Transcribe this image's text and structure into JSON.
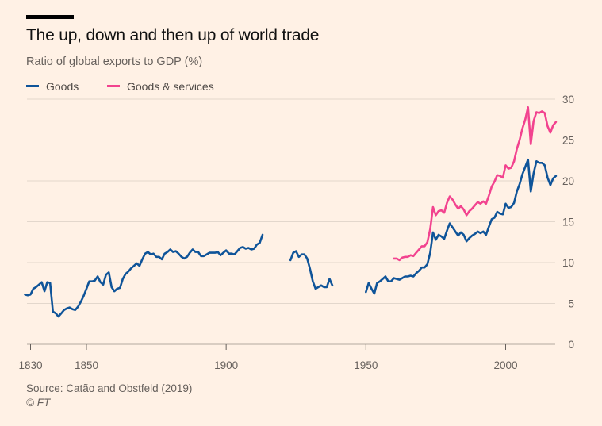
{
  "title": "The up, down and then up of world trade",
  "subtitle": "Ratio of global exports to GDP (%)",
  "source": "Source: Catão and Obstfeld (2019)",
  "credit": "© FT",
  "colors": {
    "goods": "#0F5499",
    "goods_services": "#F2438F",
    "grid": "#E3D7CC",
    "axis": "#66605c"
  },
  "chart_data": {
    "type": "line",
    "title": "The up, down and then up of world trade",
    "subtitle": "Ratio of global exports to GDP (%)",
    "xlabel": "",
    "ylabel": "",
    "xlim": [
      1828,
      2019
    ],
    "ylim": [
      0,
      30
    ],
    "x_ticks": [
      1830,
      1850,
      1900,
      1950,
      2000
    ],
    "y_ticks": [
      0,
      5,
      10,
      15,
      20,
      25,
      30
    ],
    "grid": true,
    "legend": "top-left",
    "series": [
      {
        "name": "Goods",
        "segments": [
          [
            [
              1828,
              6.1
            ],
            [
              1829,
              6.0
            ],
            [
              1830,
              6.1
            ],
            [
              1831,
              6.8
            ],
            [
              1832,
              7.0
            ],
            [
              1833,
              7.3
            ],
            [
              1834,
              7.6
            ],
            [
              1835,
              6.5
            ],
            [
              1836,
              7.6
            ],
            [
              1837,
              7.5
            ],
            [
              1838,
              4.0
            ],
            [
              1839,
              3.8
            ],
            [
              1840,
              3.4
            ],
            [
              1841,
              3.8
            ],
            [
              1842,
              4.2
            ],
            [
              1843,
              4.4
            ],
            [
              1844,
              4.5
            ],
            [
              1845,
              4.3
            ],
            [
              1846,
              4.2
            ],
            [
              1847,
              4.6
            ],
            [
              1848,
              5.2
            ],
            [
              1849,
              5.9
            ],
            [
              1850,
              6.8
            ],
            [
              1851,
              7.7
            ],
            [
              1852,
              7.7
            ],
            [
              1853,
              7.8
            ],
            [
              1854,
              8.3
            ],
            [
              1855,
              7.6
            ],
            [
              1856,
              7.3
            ],
            [
              1857,
              8.5
            ],
            [
              1858,
              8.8
            ],
            [
              1859,
              7.0
            ],
            [
              1860,
              6.5
            ],
            [
              1861,
              6.8
            ],
            [
              1862,
              6.9
            ],
            [
              1863,
              8.0
            ],
            [
              1864,
              8.6
            ],
            [
              1865,
              8.9
            ],
            [
              1866,
              9.3
            ],
            [
              1867,
              9.6
            ],
            [
              1868,
              9.9
            ],
            [
              1869,
              9.6
            ],
            [
              1870,
              10.4
            ],
            [
              1871,
              11.1
            ],
            [
              1872,
              11.3
            ],
            [
              1873,
              11.0
            ],
            [
              1874,
              11.1
            ],
            [
              1875,
              10.7
            ],
            [
              1876,
              10.7
            ],
            [
              1877,
              10.4
            ],
            [
              1878,
              11.1
            ],
            [
              1879,
              11.3
            ],
            [
              1880,
              11.6
            ],
            [
              1881,
              11.3
            ],
            [
              1882,
              11.4
            ],
            [
              1883,
              11.1
            ],
            [
              1884,
              10.7
            ],
            [
              1885,
              10.5
            ],
            [
              1886,
              10.7
            ],
            [
              1887,
              11.2
            ],
            [
              1888,
              11.6
            ],
            [
              1889,
              11.3
            ],
            [
              1890,
              11.3
            ],
            [
              1891,
              10.8
            ],
            [
              1892,
              10.8
            ],
            [
              1893,
              11.0
            ],
            [
              1894,
              11.2
            ],
            [
              1895,
              11.2
            ],
            [
              1896,
              11.2
            ],
            [
              1897,
              11.3
            ],
            [
              1898,
              10.9
            ],
            [
              1899,
              11.2
            ],
            [
              1900,
              11.5
            ],
            [
              1901,
              11.1
            ],
            [
              1902,
              11.1
            ],
            [
              1903,
              11.0
            ],
            [
              1904,
              11.4
            ],
            [
              1905,
              11.8
            ],
            [
              1906,
              11.9
            ],
            [
              1907,
              11.7
            ],
            [
              1908,
              11.8
            ],
            [
              1909,
              11.6
            ],
            [
              1910,
              11.7
            ],
            [
              1911,
              12.2
            ],
            [
              1912,
              12.4
            ],
            [
              1913,
              13.4
            ]
          ],
          [
            [
              1923,
              10.3
            ],
            [
              1924,
              11.2
            ],
            [
              1925,
              11.4
            ],
            [
              1926,
              10.7
            ],
            [
              1927,
              11.0
            ],
            [
              1928,
              11.0
            ],
            [
              1929,
              10.5
            ],
            [
              1930,
              9.2
            ],
            [
              1931,
              7.7
            ],
            [
              1932,
              6.8
            ],
            [
              1933,
              7.0
            ],
            [
              1934,
              7.2
            ],
            [
              1935,
              7.0
            ],
            [
              1936,
              7.0
            ],
            [
              1937,
              8.0
            ],
            [
              1938,
              7.2
            ]
          ],
          [
            [
              1950,
              6.4
            ],
            [
              1951,
              7.5
            ],
            [
              1952,
              6.8
            ],
            [
              1953,
              6.2
            ],
            [
              1954,
              7.5
            ],
            [
              1955,
              7.7
            ],
            [
              1956,
              8.0
            ],
            [
              1957,
              8.3
            ],
            [
              1958,
              7.7
            ],
            [
              1959,
              7.7
            ],
            [
              1960,
              8.1
            ],
            [
              1961,
              8.0
            ],
            [
              1962,
              7.9
            ],
            [
              1963,
              8.1
            ],
            [
              1964,
              8.3
            ],
            [
              1965,
              8.3
            ],
            [
              1966,
              8.4
            ],
            [
              1967,
              8.3
            ],
            [
              1968,
              8.7
            ],
            [
              1969,
              9.0
            ],
            [
              1970,
              9.4
            ],
            [
              1971,
              9.4
            ],
            [
              1972,
              9.8
            ],
            [
              1973,
              11.2
            ],
            [
              1974,
              13.7
            ],
            [
              1975,
              12.8
            ],
            [
              1976,
              13.4
            ],
            [
              1977,
              13.2
            ],
            [
              1978,
              12.9
            ],
            [
              1979,
              13.9
            ],
            [
              1980,
              14.8
            ],
            [
              1981,
              14.3
            ],
            [
              1982,
              13.8
            ],
            [
              1983,
              13.3
            ],
            [
              1984,
              13.7
            ],
            [
              1985,
              13.4
            ],
            [
              1986,
              12.6
            ],
            [
              1987,
              13.0
            ],
            [
              1988,
              13.3
            ],
            [
              1989,
              13.5
            ],
            [
              1990,
              13.8
            ],
            [
              1991,
              13.6
            ],
            [
              1992,
              13.8
            ],
            [
              1993,
              13.4
            ],
            [
              1994,
              14.4
            ],
            [
              1995,
              15.3
            ],
            [
              1996,
              15.5
            ],
            [
              1997,
              16.2
            ],
            [
              1998,
              16.0
            ],
            [
              1999,
              15.9
            ],
            [
              2000,
              17.2
            ],
            [
              2001,
              16.7
            ],
            [
              2002,
              16.8
            ],
            [
              2003,
              17.3
            ],
            [
              2004,
              18.7
            ],
            [
              2005,
              19.6
            ],
            [
              2006,
              20.8
            ],
            [
              2007,
              21.7
            ],
            [
              2008,
              22.6
            ],
            [
              2009,
              18.7
            ],
            [
              2010,
              20.9
            ],
            [
              2011,
              22.4
            ],
            [
              2012,
              22.2
            ],
            [
              2013,
              22.2
            ],
            [
              2014,
              21.9
            ],
            [
              2015,
              20.4
            ],
            [
              2016,
              19.5
            ],
            [
              2017,
              20.3
            ],
            [
              2018,
              20.6
            ]
          ]
        ]
      },
      {
        "name": "Goods & services",
        "segments": [
          [
            [
              1960,
              10.5
            ],
            [
              1961,
              10.5
            ],
            [
              1962,
              10.3
            ],
            [
              1963,
              10.6
            ],
            [
              1964,
              10.7
            ],
            [
              1965,
              10.7
            ],
            [
              1966,
              10.9
            ],
            [
              1967,
              10.8
            ],
            [
              1968,
              11.2
            ],
            [
              1969,
              11.6
            ],
            [
              1970,
              12.0
            ],
            [
              1971,
              12.0
            ],
            [
              1972,
              12.5
            ],
            [
              1973,
              14.1
            ],
            [
              1974,
              16.8
            ],
            [
              1975,
              15.8
            ],
            [
              1976,
              16.3
            ],
            [
              1977,
              16.4
            ],
            [
              1978,
              16.1
            ],
            [
              1979,
              17.3
            ],
            [
              1980,
              18.1
            ],
            [
              1981,
              17.7
            ],
            [
              1982,
              17.1
            ],
            [
              1983,
              16.6
            ],
            [
              1984,
              16.9
            ],
            [
              1985,
              16.5
            ],
            [
              1986,
              15.8
            ],
            [
              1987,
              16.3
            ],
            [
              1988,
              16.6
            ],
            [
              1989,
              17.0
            ],
            [
              1990,
              17.4
            ],
            [
              1991,
              17.2
            ],
            [
              1992,
              17.5
            ],
            [
              1993,
              17.2
            ],
            [
              1994,
              18.2
            ],
            [
              1995,
              19.3
            ],
            [
              1996,
              19.9
            ],
            [
              1997,
              20.7
            ],
            [
              1998,
              20.6
            ],
            [
              1999,
              20.4
            ],
            [
              2000,
              21.9
            ],
            [
              2001,
              21.5
            ],
            [
              2002,
              21.6
            ],
            [
              2003,
              22.4
            ],
            [
              2004,
              23.9
            ],
            [
              2005,
              25.0
            ],
            [
              2006,
              26.4
            ],
            [
              2007,
              27.5
            ],
            [
              2008,
              29.0
            ],
            [
              2009,
              24.5
            ],
            [
              2010,
              27.3
            ],
            [
              2011,
              28.4
            ],
            [
              2012,
              28.3
            ],
            [
              2013,
              28.5
            ],
            [
              2014,
              28.3
            ],
            [
              2015,
              26.7
            ],
            [
              2016,
              25.9
            ],
            [
              2017,
              26.8
            ],
            [
              2018,
              27.2
            ]
          ]
        ]
      }
    ]
  }
}
